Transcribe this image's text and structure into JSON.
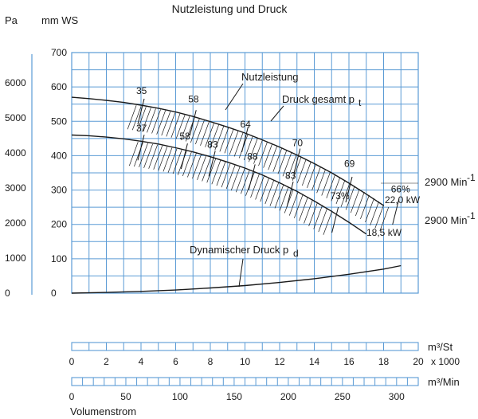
{
  "chart_data": {
    "type": "line",
    "title": "Nutzleistung und Druck",
    "y_axes": {
      "pa": {
        "label": "Pa",
        "ticks": [
          "6000",
          "5000",
          "4000",
          "3000",
          "2000",
          "1000",
          "0"
        ],
        "values": [
          6000,
          5000,
          4000,
          3000,
          2000,
          1000,
          0
        ]
      },
      "mmws": {
        "label": "mm WS",
        "ticks": [
          "700",
          "600",
          "500",
          "400",
          "300",
          "200",
          "100",
          "0"
        ],
        "values": [
          700,
          600,
          500,
          400,
          300,
          200,
          100,
          0
        ],
        "range": [
          0,
          700
        ]
      }
    },
    "x_axes": {
      "flow_st": {
        "label": "m³/St",
        "multiplier": "x 1000",
        "ticks": [
          "0",
          "2",
          "4",
          "6",
          "8",
          "10",
          "12",
          "14",
          "16",
          "18",
          "20"
        ],
        "values": [
          0,
          2,
          4,
          6,
          8,
          10,
          12,
          14,
          16,
          18,
          20
        ],
        "range": [
          0,
          20
        ]
      },
      "flow_min": {
        "label": "m³/Min",
        "ticks": [
          "0",
          "50",
          "100",
          "150",
          "200",
          "250",
          "300"
        ],
        "values": [
          0,
          50,
          100,
          150,
          200,
          250,
          300
        ]
      },
      "name": "Volumenstrom"
    },
    "grid": true,
    "series": [
      {
        "name": "2900 Min-1",
        "sub_label": "22,0 kW",
        "x": [
          0,
          1,
          2,
          3,
          4,
          5,
          6,
          7,
          8,
          9,
          10,
          11,
          12,
          13,
          14,
          15,
          16,
          17,
          18
        ],
        "y": [
          570,
          566,
          561,
          555,
          547,
          538,
          527,
          514,
          499,
          483,
          466,
          446,
          425,
          402,
          377,
          350,
          320,
          288,
          255
        ]
      },
      {
        "name": "2900 Min-1",
        "sub_label": "18,5 kW",
        "x": [
          0,
          1,
          2,
          3,
          4,
          5,
          6,
          7,
          8,
          9,
          10,
          11,
          12,
          13,
          14,
          15,
          16,
          17
        ],
        "y": [
          460,
          458,
          454,
          449,
          442,
          434,
          423,
          411,
          397,
          381,
          364,
          344,
          321,
          296,
          268,
          238,
          206,
          172
        ]
      },
      {
        "name": "Dynamischer Druck",
        "x": [
          0,
          2,
          4,
          6,
          8,
          10,
          12,
          14,
          16,
          18,
          19
        ],
        "y": [
          0,
          2,
          5,
          9,
          15,
          22,
          31,
          42,
          55,
          70,
          80
        ]
      }
    ],
    "efficiency_labels": [
      {
        "text": "35",
        "x": 4,
        "y": 580
      },
      {
        "text": "58",
        "x": 7,
        "y": 555
      },
      {
        "text": "64",
        "x": 10,
        "y": 482
      },
      {
        "text": "70",
        "x": 13,
        "y": 428
      },
      {
        "text": "69",
        "x": 16,
        "y": 367
      },
      {
        "text": "66%",
        "x": 18.7,
        "y": 293
      },
      {
        "text": "37",
        "x": 4,
        "y": 470
      },
      {
        "text": "58",
        "x": 6.5,
        "y": 447
      },
      {
        "text": "83",
        "x": 8.1,
        "y": 423
      },
      {
        "text": "88",
        "x": 10.4,
        "y": 388
      },
      {
        "text": "83",
        "x": 12.6,
        "y": 333
      },
      {
        "text": "73%",
        "x": 15.2,
        "y": 274
      }
    ],
    "annotations": {
      "nutzleistung": "Nutzleistung",
      "druck_gesamt": "Druck gesamt p",
      "druck_gesamt_sub": "t",
      "dynamischer": "Dynamischer Druck p",
      "dynamischer_sub": "d",
      "speed_sup": "-1"
    },
    "colors": {
      "grid": "#5b9bd5",
      "line": "#1a1a1a",
      "text": "#1a1a1a"
    }
  }
}
